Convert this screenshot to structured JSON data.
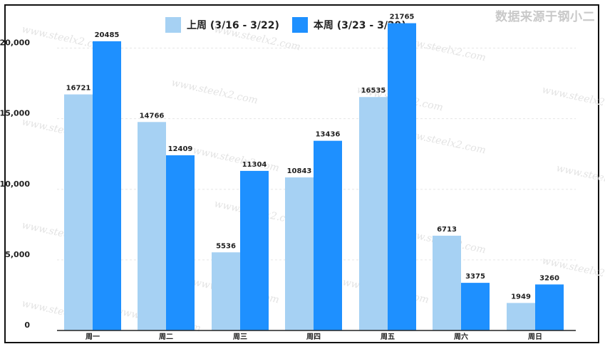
{
  "source_note": "数据来源于钢小二",
  "watermark_text": "www.steelx2.com",
  "chart_data": {
    "type": "bar",
    "title": "",
    "xlabel": "",
    "ylabel": "",
    "categories": [
      "周一",
      "周二",
      "周三",
      "周四",
      "周五",
      "周六",
      "周日"
    ],
    "series": [
      {
        "name": "上周 (3/16 - 3/22)",
        "color": "#a6d1f3",
        "values": [
          16721,
          14766,
          5536,
          10843,
          16535,
          6713,
          1949
        ]
      },
      {
        "name": "本周 (3/23 - 3/29)",
        "color": "#1e90ff",
        "values": [
          20485,
          12409,
          11304,
          13436,
          21765,
          3375,
          3260
        ]
      }
    ],
    "ylim": [
      0,
      22500
    ],
    "yticks": [
      0,
      5000,
      10000,
      15000,
      20000
    ],
    "ytick_labels": [
      "0",
      "5,000",
      "10,000",
      "15,000",
      "20,000"
    ],
    "grid": true,
    "legend_position": "top-center"
  }
}
